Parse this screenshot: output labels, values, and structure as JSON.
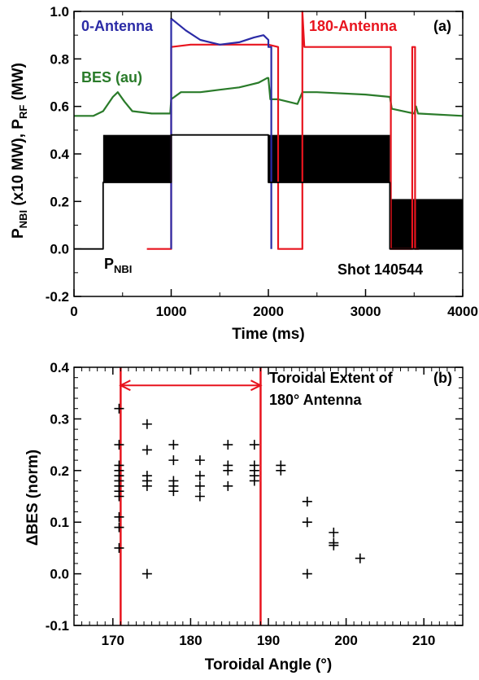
{
  "chart_data": [
    {
      "type": "line",
      "panel_label": "(a)",
      "xlabel": "Time (ms)",
      "ylabel": {
        "p1": "P",
        "s1": "NBI",
        "mid": " (x10 MW), P",
        "s2": "RF",
        "end": " (MW)"
      },
      "xlim": [
        0,
        4000
      ],
      "ylim": [
        -0.2,
        1.0
      ],
      "xticks": [
        "0",
        "1000",
        "2000",
        "3000",
        "4000"
      ],
      "yticks": [
        "-0.2",
        "0.0",
        "0.2",
        "0.4",
        "0.6",
        "0.8",
        "1.0"
      ],
      "annotations": {
        "pnbi_main": "P",
        "pnbi_sub": "NBI",
        "shot": "Shot 140544",
        "bes": "BES (au)"
      },
      "series": [
        {
          "name": "0-Antenna",
          "color": "#2b2ba6",
          "points": [
            [
              1000,
              0
            ],
            [
              1000,
              0.97
            ],
            [
              1150,
              0.92
            ],
            [
              1300,
              0.88
            ],
            [
              1500,
              0.86
            ],
            [
              1700,
              0.87
            ],
            [
              1850,
              0.89
            ],
            [
              1950,
              0.9
            ],
            [
              2000,
              0.88
            ],
            [
              2000,
              0.85
            ],
            [
              2030,
              0.85
            ],
            [
              2030,
              0
            ]
          ]
        },
        {
          "name": "180-Antenna",
          "color": "#e8141e",
          "points": [
            [
              750,
              0
            ],
            [
              1000,
              0
            ],
            [
              1000,
              0.85
            ],
            [
              1200,
              0.86
            ],
            [
              1400,
              0.86
            ],
            [
              1600,
              0.86
            ],
            [
              1800,
              0.86
            ],
            [
              2000,
              0.86
            ],
            [
              2100,
              0.85
            ],
            [
              2100,
              0
            ],
            [
              2350,
              0
            ],
            [
              2350,
              1.0
            ],
            [
              2370,
              0.85
            ],
            [
              3260,
              0.85
            ],
            [
              3260,
              0
            ],
            [
              3480,
              0
            ],
            [
              3480,
              0.85
            ],
            [
              3510,
              0.85
            ],
            [
              3510,
              0
            ],
            [
              3550,
              0
            ]
          ]
        },
        {
          "name": "BES (au)",
          "color": "#2a7b2a",
          "points": [
            [
              0,
              0.56
            ],
            [
              200,
              0.56
            ],
            [
              300,
              0.58
            ],
            [
              400,
              0.64
            ],
            [
              450,
              0.66
            ],
            [
              520,
              0.62
            ],
            [
              600,
              0.58
            ],
            [
              800,
              0.57
            ],
            [
              990,
              0.57
            ],
            [
              1000,
              0.63
            ],
            [
              1100,
              0.66
            ],
            [
              1300,
              0.66
            ],
            [
              1500,
              0.67
            ],
            [
              1700,
              0.68
            ],
            [
              1800,
              0.69
            ],
            [
              1900,
              0.7
            ],
            [
              1990,
              0.72
            ],
            [
              2000,
              0.72
            ],
            [
              2020,
              0.63
            ],
            [
              2100,
              0.63
            ],
            [
              2300,
              0.61
            ],
            [
              2350,
              0.66
            ],
            [
              2500,
              0.66
            ],
            [
              3000,
              0.65
            ],
            [
              3250,
              0.64
            ],
            [
              3270,
              0.59
            ],
            [
              3500,
              0.57
            ],
            [
              3520,
              0.6
            ],
            [
              3540,
              0.57
            ],
            [
              4000,
              0.56
            ]
          ]
        },
        {
          "name": "P_NBI",
          "color": "#000000",
          "points": [
            [
              0,
              0
            ],
            [
              300,
              0
            ],
            [
              300,
              0.28
            ],
            [
              1000,
              0.28
            ],
            [
              1000,
              0.48
            ],
            [
              2000,
              0.48
            ],
            [
              2000,
              0.28
            ],
            [
              3250,
              0.28
            ],
            [
              3250,
              0
            ],
            [
              4000,
              0
            ]
          ]
        }
      ],
      "nbi_modulation_blocks": [
        {
          "x0": 300,
          "x1": 1000,
          "y0": 0.28,
          "y1": 0.48
        },
        {
          "x0": 2000,
          "x1": 3250,
          "y0": 0.28,
          "y1": 0.48
        },
        {
          "x0": 3250,
          "x1": 4000,
          "y0": 0.0,
          "y1": 0.21
        }
      ]
    },
    {
      "type": "scatter",
      "panel_label": "(b)",
      "xlabel": "Toroidal Angle (°)",
      "ylabel": "ΔBES (norm)",
      "xlim": [
        165,
        215
      ],
      "ylim": [
        -0.1,
        0.4
      ],
      "xticks": [
        "170",
        "180",
        "190",
        "200",
        "210"
      ],
      "yticks": [
        "-0.1",
        "0.0",
        "0.1",
        "0.2",
        "0.3",
        "0.4"
      ],
      "annotations": {
        "extent_line1": "Toroidal Extent of",
        "extent_line2": "180° Antenna"
      },
      "antenna_extent": [
        171,
        189
      ],
      "marker": "+",
      "points": [
        [
          170.8,
          0.32
        ],
        [
          170.8,
          0.25
        ],
        [
          170.8,
          0.21
        ],
        [
          170.8,
          0.2
        ],
        [
          170.8,
          0.19
        ],
        [
          170.8,
          0.18
        ],
        [
          170.8,
          0.17
        ],
        [
          170.8,
          0.16
        ],
        [
          170.8,
          0.15
        ],
        [
          170.8,
          0.11
        ],
        [
          170.8,
          0.09
        ],
        [
          170.8,
          0.05
        ],
        [
          174.4,
          0.29
        ],
        [
          174.4,
          0.24
        ],
        [
          174.4,
          0.19
        ],
        [
          174.4,
          0.18
        ],
        [
          174.4,
          0.17
        ],
        [
          174.4,
          0.0
        ],
        [
          177.8,
          0.25
        ],
        [
          177.8,
          0.22
        ],
        [
          177.8,
          0.18
        ],
        [
          177.8,
          0.17
        ],
        [
          177.8,
          0.16
        ],
        [
          181.2,
          0.22
        ],
        [
          181.2,
          0.19
        ],
        [
          181.2,
          0.17
        ],
        [
          181.2,
          0.15
        ],
        [
          184.8,
          0.25
        ],
        [
          184.8,
          0.21
        ],
        [
          184.8,
          0.2
        ],
        [
          184.8,
          0.17
        ],
        [
          188.2,
          0.25
        ],
        [
          188.2,
          0.21
        ],
        [
          188.2,
          0.2
        ],
        [
          188.2,
          0.19
        ],
        [
          188.2,
          0.18
        ],
        [
          191.6,
          0.21
        ],
        [
          191.6,
          0.2
        ],
        [
          195.0,
          0.14
        ],
        [
          195.0,
          0.1
        ],
        [
          195.0,
          0.0
        ],
        [
          198.4,
          0.08
        ],
        [
          198.4,
          0.06
        ],
        [
          198.4,
          0.055
        ],
        [
          201.8,
          0.03
        ]
      ]
    }
  ]
}
